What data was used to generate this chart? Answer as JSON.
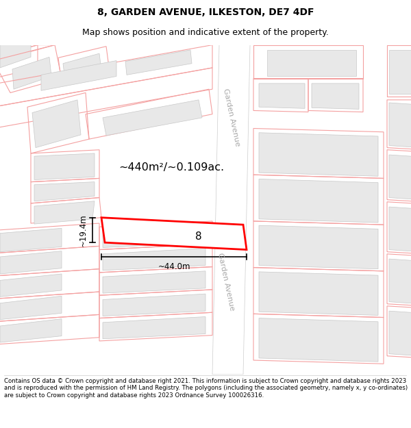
{
  "title": "8, GARDEN AVENUE, ILKESTON, DE7 4DF",
  "subtitle": "Map shows position and indicative extent of the property.",
  "footer": "Contains OS data © Crown copyright and database right 2021. This information is subject to Crown copyright and database rights 2023 and is reproduced with the permission of HM Land Registry. The polygons (including the associated geometry, namely x, y co-ordinates) are subject to Crown copyright and database rights 2023 Ordnance Survey 100026316.",
  "bg_color": "#ffffff",
  "map_bg": "#ffffff",
  "plot_outline_color": "#ff0000",
  "other_outline_color": "#f4a0a0",
  "building_fill": "#e8e8e8",
  "building_edge": "#c8c8c8",
  "title_fontsize": 10,
  "subtitle_fontsize": 9,
  "footer_fontsize": 6.5,
  "area_label": "~440m²/~0.109ac.",
  "width_label": "~44.0m",
  "height_label": "~19.4m",
  "number_label": "8",
  "street_label": "Garden Avenue"
}
